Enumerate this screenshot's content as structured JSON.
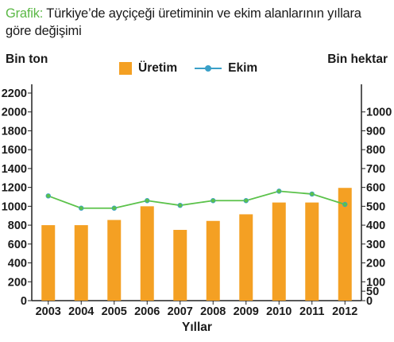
{
  "header": {
    "prefix": "Grafik:",
    "title": "Türkiye’de ayçiçeği üretiminin ve ekim alanlarının yıllara göre değişimi"
  },
  "chart_data": {
    "type": "bar+line",
    "categories": [
      "2003",
      "2004",
      "2005",
      "2006",
      "2007",
      "2008",
      "2009",
      "2010",
      "2011",
      "2012"
    ],
    "series": [
      {
        "name": "Üretim",
        "type": "bar",
        "axis": "left",
        "color": "#f4a023",
        "values": [
          800,
          800,
          855,
          1000,
          750,
          845,
          915,
          1040,
          1040,
          1195
        ]
      },
      {
        "name": "Ekim",
        "type": "line",
        "axis": "right",
        "color": "#5bc24a",
        "marker_color": "#3aa0c8",
        "values": [
          555,
          490,
          490,
          530,
          505,
          530,
          530,
          580,
          565,
          510
        ]
      }
    ],
    "y_left": {
      "label": "Bin ton",
      "range": [
        0,
        2200
      ],
      "ticks": [
        "0",
        "200",
        "400",
        "600",
        "800",
        "1000",
        "1200",
        "1400",
        "1600",
        "1800",
        "2000",
        "2200"
      ]
    },
    "y_right": {
      "label": "Bin hektar",
      "range": [
        0,
        1100
      ],
      "ticks": [
        "0",
        "50",
        "100",
        "200",
        "300",
        "400",
        "500",
        "600",
        "700",
        "800",
        "900",
        "1000"
      ]
    },
    "xlabel": "Yıllar",
    "legend_position": "top",
    "grid": false
  }
}
